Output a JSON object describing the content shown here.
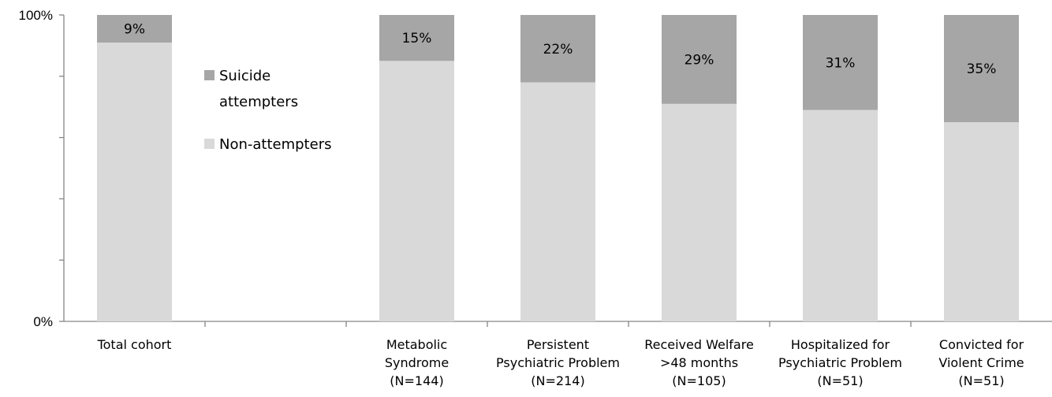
{
  "chart_data": {
    "type": "bar",
    "stacked": "percent",
    "categories": [
      "Total cohort",
      "",
      "Metabolic Syndrome (N=144)",
      "Persistent Psychiatric Problem (N=214)",
      "Received Welfare >48 months (N=105)",
      "Hospitalized for Psychiatric Problem (N=51)",
      "Convicted for Violent Crime (N=51)"
    ],
    "category_label_lines": [
      [
        "Total cohort"
      ],
      [],
      [
        "Metabolic",
        "Syndrome",
        "(N=144)"
      ],
      [
        "Persistent",
        "Psychiatric Problem",
        "(N=214)"
      ],
      [
        "Received Welfare",
        ">48 months",
        "(N=105)"
      ],
      [
        "Hospitalized for",
        "Psychiatric Problem",
        "(N=51)"
      ],
      [
        "Convicted for",
        "Violent Crime",
        "(N=51)"
      ]
    ],
    "series": [
      {
        "name": "Suicide attempters",
        "values": [
          9,
          null,
          15,
          22,
          29,
          31,
          35
        ],
        "color": "#a6a6a6"
      },
      {
        "name": "Non-attempters",
        "values": [
          91,
          null,
          85,
          78,
          71,
          69,
          65
        ],
        "color": "#d9d9d9"
      }
    ],
    "data_labels": [
      "9%",
      "",
      "15%",
      "22%",
      "29%",
      "31%",
      "35%"
    ],
    "ylim": [
      0,
      100
    ],
    "y_tick_labels": {
      "min": "0%",
      "max": "100%"
    },
    "legend": {
      "placement": "inside-left",
      "entries": [
        {
          "lines": [
            "Suicide",
            "attempters"
          ],
          "color": "#a6a6a6"
        },
        {
          "lines": [
            "Non-attempters"
          ],
          "color": "#d9d9d9"
        }
      ]
    },
    "grid": false
  }
}
